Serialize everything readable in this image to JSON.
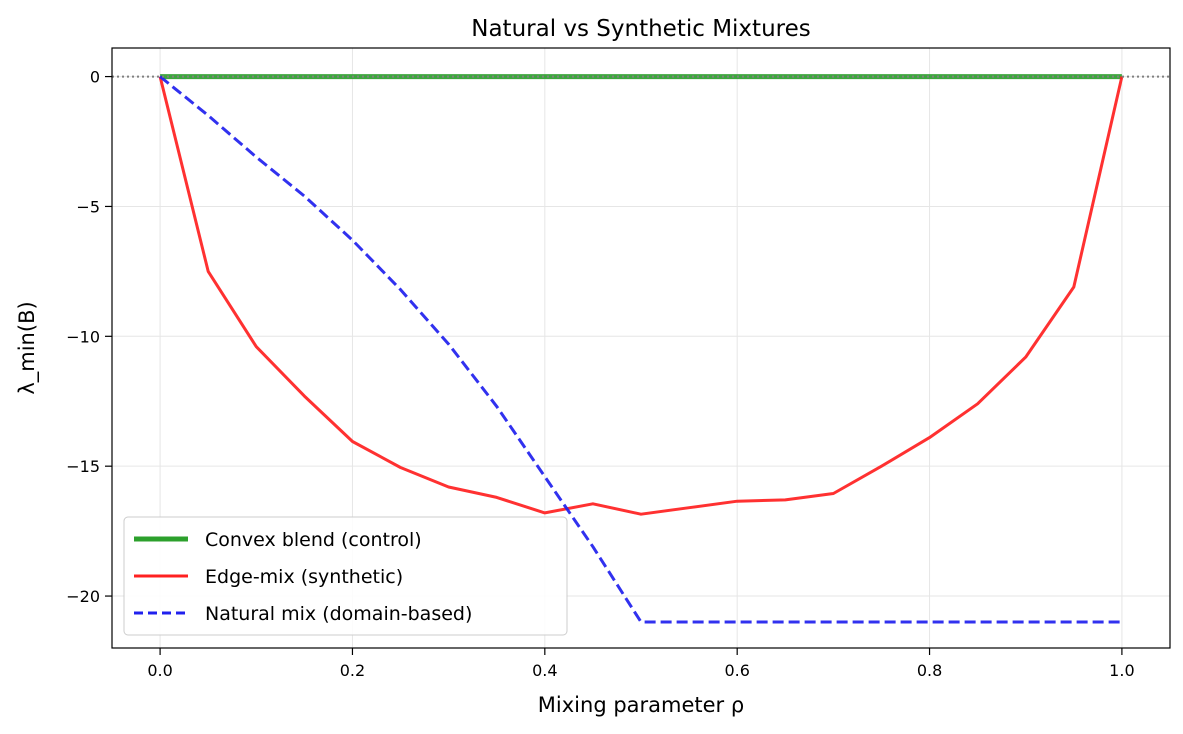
{
  "chart_data": {
    "type": "line",
    "title": "Natural vs Synthetic Mixtures",
    "xlabel": "Mixing parameter ρ",
    "ylabel": "λ_min(B)",
    "xlim": [
      -0.05,
      1.05
    ],
    "ylim": [
      -22.0,
      1.1
    ],
    "xticks": [
      0.0,
      0.2,
      0.4,
      0.6,
      0.8,
      1.0
    ],
    "xtick_labels": [
      "0.0",
      "0.2",
      "0.4",
      "0.6",
      "0.8",
      "1.0"
    ],
    "yticks": [
      0,
      -5,
      -10,
      -15,
      -20
    ],
    "ytick_labels": [
      "0",
      "−5",
      "−10",
      "−15",
      "−20"
    ],
    "grid": true,
    "legend_position": "lower-left",
    "reference_line": {
      "y": 0,
      "style": "dotted",
      "color": "#808080"
    },
    "series": [
      {
        "name": "Convex blend (control)",
        "color": "#2ca02c",
        "style": "solid",
        "x": [
          0.0,
          0.05,
          0.1,
          0.15,
          0.2,
          0.25,
          0.3,
          0.35,
          0.4,
          0.45,
          0.5,
          0.55,
          0.6,
          0.65,
          0.7,
          0.75,
          0.8,
          0.85,
          0.9,
          0.95,
          1.0
        ],
        "y": [
          0,
          0,
          0,
          0,
          0,
          0,
          0,
          0,
          0,
          0,
          0,
          0,
          0,
          0,
          0,
          0,
          0,
          0,
          0,
          0,
          0
        ]
      },
      {
        "name": "Edge-mix (synthetic)",
        "color": "#ff2020",
        "style": "solid",
        "x": [
          0.0,
          0.05,
          0.1,
          0.15,
          0.2,
          0.25,
          0.3,
          0.35,
          0.4,
          0.45,
          0.5,
          0.55,
          0.6,
          0.65,
          0.7,
          0.75,
          0.8,
          0.85,
          0.9,
          0.95,
          1.0
        ],
        "y": [
          0,
          -7.5,
          -10.4,
          -12.3,
          -14.05,
          -15.05,
          -15.8,
          -16.2,
          -16.8,
          -16.45,
          -16.85,
          -16.6,
          -16.35,
          -16.3,
          -16.05,
          -15.0,
          -13.9,
          -12.6,
          -10.8,
          -8.1,
          0
        ]
      },
      {
        "name": "Natural mix (domain-based)",
        "color": "#2020ee",
        "style": "dashed",
        "x": [
          0.0,
          0.05,
          0.1,
          0.15,
          0.2,
          0.25,
          0.3,
          0.35,
          0.4,
          0.45,
          0.5,
          0.55,
          0.6,
          0.65,
          0.7,
          0.75,
          0.8,
          0.85,
          0.9,
          0.95,
          1.0
        ],
        "y": [
          0,
          -1.5,
          -3.1,
          -4.6,
          -6.3,
          -8.2,
          -10.3,
          -12.7,
          -15.4,
          -18.1,
          -21.0,
          -21.0,
          -21.0,
          -21.0,
          -21.0,
          -21.0,
          -21.0,
          -21.0,
          -21.0,
          -21.0,
          -21.0
        ]
      }
    ]
  }
}
